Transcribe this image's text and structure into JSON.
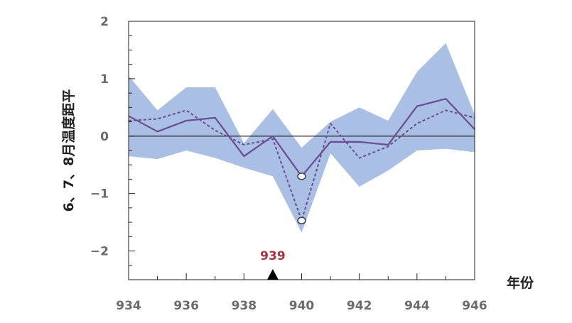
{
  "chart_data": {
    "type": "line",
    "xlabel": "年份",
    "ylabel": "6、7、8月温度距平",
    "xlim": [
      934,
      946
    ],
    "ylim": [
      -2.5,
      2
    ],
    "x_ticks": [
      "934",
      "936",
      "938",
      "940",
      "942",
      "944",
      "946"
    ],
    "y_ticks": [
      "2",
      "1",
      "0",
      "−1",
      "−2"
    ],
    "x": [
      934,
      935,
      936,
      937,
      938,
      939,
      940,
      941,
      942,
      943,
      944,
      945,
      946
    ],
    "band": {
      "upper": [
        1.05,
        0.45,
        0.85,
        0.85,
        -0.12,
        0.47,
        -0.2,
        0.25,
        0.5,
        0.27,
        1.12,
        1.62,
        0.38
      ],
      "lower": [
        -0.35,
        -0.4,
        -0.25,
        -0.38,
        -0.55,
        -0.7,
        -1.68,
        -0.3,
        -0.88,
        -0.6,
        -0.25,
        -0.22,
        -0.28
      ],
      "color": "#a9bfe4"
    },
    "series": [
      {
        "style": "solid",
        "color": "#6a4c93",
        "values": [
          0.35,
          0.08,
          0.27,
          0.32,
          -0.35,
          0.0,
          -0.7,
          -0.1,
          -0.1,
          -0.15,
          0.52,
          0.65,
          0.12
        ]
      },
      {
        "style": "dashed",
        "color": "#6a4c93",
        "values": [
          0.27,
          0.3,
          0.45,
          0.1,
          -0.15,
          -0.05,
          -1.47,
          0.22,
          -0.38,
          -0.18,
          0.22,
          0.45,
          0.32
        ]
      }
    ],
    "highlight_points": [
      {
        "x": 940,
        "y": -0.7
      },
      {
        "x": 940,
        "y": -1.47
      }
    ],
    "event_marker": {
      "x": 939,
      "label": "939",
      "color": "#b03040"
    },
    "zero_line": true,
    "grid": false
  }
}
